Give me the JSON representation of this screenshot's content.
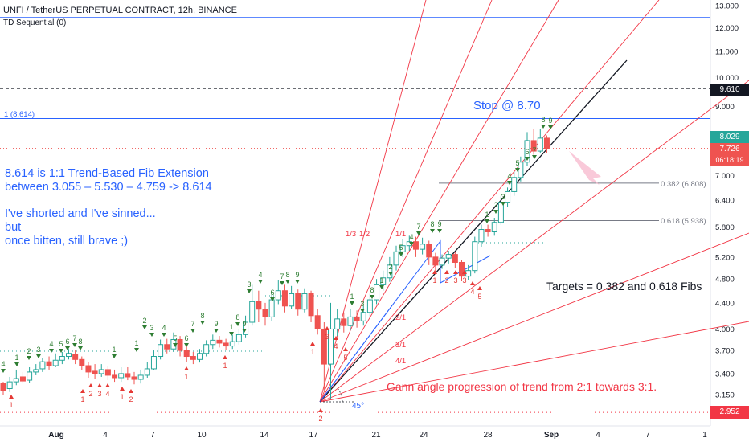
{
  "header": {
    "symbol_title": "UNFI / TetherUS PERPETUAL CONTRACT, 12h, BINANCE",
    "indicator": "TD Sequential (0)"
  },
  "annotations": {
    "fib_note": [
      "8.614 is 1:1 Trend-Based Fib Extension",
      "between 3.055 – 5.530 – 4.759 -> 8.614"
    ],
    "short_note": [
      "I've shorted and I've sinned...",
      "but",
      "once bitten, still brave ;)"
    ],
    "stop": "Stop @ 8.70",
    "targets": "Targets = 0.382 and 0.618 Fibs",
    "gann": "Gann angle progression of trend from 2:1 towards 3:1.",
    "level_1": "1 (8.614)",
    "fib_0382": "0.382 (6.808)",
    "fib_0618": "0.618 (5.938)",
    "gann_labels": [
      "1/3",
      "1/2",
      "1/1",
      "2/1",
      "3/1",
      "4/1"
    ],
    "angle_label": "45°"
  },
  "price_tags": {
    "dashed_level": "9.610",
    "last_high": "8.029",
    "current": "7.726",
    "countdown": "06:18:19",
    "low": "2.952"
  },
  "colors": {
    "up": "#26a69a",
    "down": "#ef5350",
    "gann": "#f23645",
    "blue": "#2962ff",
    "td_up": "#2e7d32",
    "td_down": "#e53935"
  },
  "chart_data": {
    "type": "candlestick",
    "interval": "12h",
    "y_scale": "log",
    "ylim": [
      2.85,
      13.3
    ],
    "y_ticks": [
      "13.000",
      "12.000",
      "11.000",
      "10.000",
      "9.000",
      "8.000",
      "7.000",
      "6.400",
      "5.800",
      "5.200",
      "4.800",
      "4.400",
      "4.000",
      "3.700",
      "3.400",
      "3.150"
    ],
    "y_tick_values": [
      13.0,
      12.0,
      11.0,
      10.0,
      9.0,
      8.0,
      7.0,
      6.4,
      5.8,
      5.2,
      4.8,
      4.4,
      4.0,
      3.7,
      3.4,
      3.15
    ],
    "x_ticks": [
      "Aug",
      "4",
      "7",
      "10",
      "14",
      "17",
      "21",
      "24",
      "28",
      "Sep",
      "4",
      "7",
      "1"
    ],
    "levels": {
      "upper_blue": 12.45,
      "dashed_black": 9.61,
      "fib_1": 8.614,
      "fib_0382": 6.808,
      "fib_0618": 5.938,
      "current_dotted": 7.726,
      "low_dotted": 2.952
    },
    "candles": [
      [
        3.28,
        3.2,
        3.3,
        3.15
      ],
      [
        3.22,
        3.3,
        3.36,
        3.18
      ],
      [
        3.3,
        3.34,
        3.45,
        3.26
      ],
      [
        3.36,
        3.31,
        3.42,
        3.28
      ],
      [
        3.32,
        3.42,
        3.48,
        3.29
      ],
      [
        3.42,
        3.45,
        3.52,
        3.38
      ],
      [
        3.46,
        3.55,
        3.6,
        3.42
      ],
      [
        3.55,
        3.5,
        3.62,
        3.45
      ],
      [
        3.5,
        3.57,
        3.66,
        3.48
      ],
      [
        3.57,
        3.62,
        3.68,
        3.52
      ],
      [
        3.62,
        3.66,
        3.72,
        3.58
      ],
      [
        3.65,
        3.58,
        3.7,
        3.52
      ],
      [
        3.58,
        3.5,
        3.62,
        3.44
      ],
      [
        3.5,
        3.42,
        3.55,
        3.35
      ],
      [
        3.43,
        3.4,
        3.52,
        3.34
      ],
      [
        3.4,
        3.45,
        3.52,
        3.36
      ],
      [
        3.45,
        3.38,
        3.5,
        3.32
      ],
      [
        3.38,
        3.35,
        3.45,
        3.3
      ],
      [
        3.35,
        3.4,
        3.48,
        3.3
      ],
      [
        3.4,
        3.36,
        3.48,
        3.32
      ],
      [
        3.36,
        3.33,
        3.42,
        3.27
      ],
      [
        3.33,
        3.38,
        3.45,
        3.28
      ],
      [
        3.38,
        3.46,
        3.55,
        3.35
      ],
      [
        3.46,
        3.62,
        3.7,
        3.44
      ],
      [
        3.62,
        3.78,
        3.85,
        3.58
      ],
      [
        3.78,
        3.72,
        3.86,
        3.66
      ],
      [
        3.72,
        3.85,
        3.95,
        3.68
      ],
      [
        3.85,
        3.7,
        3.9,
        3.62
      ],
      [
        3.7,
        3.62,
        3.76,
        3.55
      ],
      [
        3.62,
        3.58,
        3.68,
        3.52
      ],
      [
        3.58,
        3.66,
        3.72,
        3.54
      ],
      [
        3.66,
        3.78,
        3.84,
        3.62
      ],
      [
        3.78,
        3.84,
        3.92,
        3.72
      ],
      [
        3.84,
        3.8,
        3.9,
        3.74
      ],
      [
        3.8,
        3.76,
        3.86,
        3.7
      ],
      [
        3.76,
        3.82,
        3.92,
        3.72
      ],
      [
        3.82,
        3.92,
        4.0,
        3.78
      ],
      [
        3.92,
        4.1,
        4.2,
        3.88
      ],
      [
        4.1,
        4.42,
        4.7,
        4.05
      ],
      [
        4.42,
        4.3,
        4.6,
        4.1
      ],
      [
        4.3,
        4.18,
        4.4,
        4.05
      ],
      [
        4.18,
        4.45,
        4.6,
        4.12
      ],
      [
        4.45,
        4.6,
        4.78,
        4.38
      ],
      [
        4.6,
        4.35,
        4.7,
        4.25
      ],
      [
        4.35,
        4.55,
        4.68,
        4.3
      ],
      [
        4.55,
        4.3,
        4.62,
        4.2
      ],
      [
        4.3,
        4.55,
        4.64,
        4.25
      ],
      [
        4.55,
        4.2,
        4.6,
        4.1
      ],
      [
        4.2,
        4.0,
        4.3,
        3.92
      ],
      [
        4.0,
        3.52,
        4.1,
        3.2
      ],
      [
        3.52,
        4.0,
        4.4,
        3.1
      ],
      [
        4.0,
        4.15,
        4.3,
        3.9
      ],
      [
        4.15,
        4.05,
        4.25,
        3.95
      ],
      [
        4.05,
        4.18,
        4.3,
        3.98
      ],
      [
        4.18,
        4.12,
        4.28,
        4.02
      ],
      [
        4.12,
        4.25,
        4.35,
        4.05
      ],
      [
        4.25,
        4.45,
        4.55,
        4.18
      ],
      [
        4.45,
        4.7,
        4.8,
        4.38
      ],
      [
        4.7,
        4.82,
        4.95,
        4.6
      ],
      [
        4.82,
        5.05,
        5.2,
        4.75
      ],
      [
        5.05,
        5.3,
        5.42,
        4.95
      ],
      [
        5.3,
        5.42,
        5.55,
        5.2
      ],
      [
        5.42,
        5.5,
        5.62,
        5.32
      ],
      [
        5.5,
        5.35,
        5.6,
        5.2
      ],
      [
        5.35,
        5.45,
        5.58,
        5.25
      ],
      [
        5.45,
        5.2,
        5.52,
        5.05
      ],
      [
        5.2,
        5.05,
        5.28,
        4.95
      ],
      [
        5.05,
        5.18,
        5.25,
        4.98
      ],
      [
        5.18,
        5.25,
        5.32,
        5.08
      ],
      [
        5.25,
        5.1,
        5.3,
        5.0
      ],
      [
        5.1,
        4.85,
        5.15,
        4.76
      ],
      [
        4.85,
        4.95,
        5.05,
        4.78
      ],
      [
        4.95,
        5.5,
        5.6,
        4.9
      ],
      [
        5.5,
        5.75,
        5.85,
        5.4
      ],
      [
        5.75,
        5.7,
        5.85,
        5.6
      ],
      [
        5.7,
        5.9,
        6.0,
        5.62
      ],
      [
        5.9,
        6.35,
        6.5,
        5.85
      ],
      [
        6.35,
        6.6,
        6.7,
        6.25
      ],
      [
        6.6,
        6.95,
        7.1,
        6.5
      ],
      [
        6.95,
        7.35,
        7.5,
        6.85
      ],
      [
        7.35,
        7.95,
        8.2,
        7.25
      ],
      [
        7.95,
        7.65,
        8.3,
        7.55
      ],
      [
        7.65,
        8.02,
        8.3,
        7.6
      ],
      [
        8.02,
        7.73,
        8.1,
        7.6
      ]
    ]
  }
}
